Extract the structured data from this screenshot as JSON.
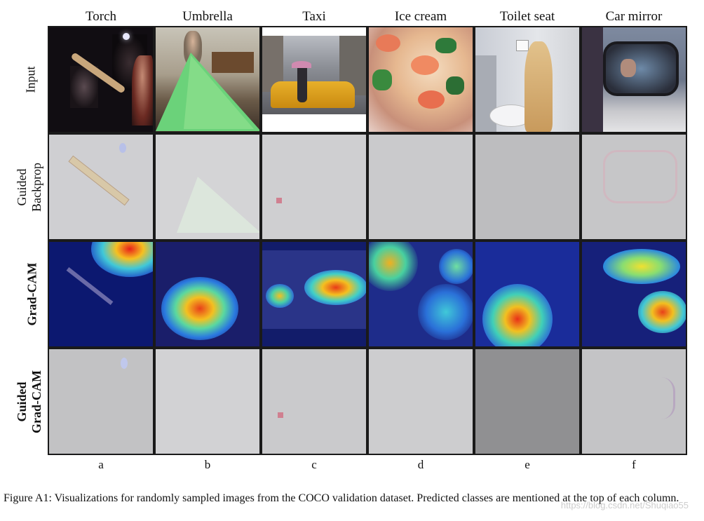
{
  "columns": [
    {
      "label": "Torch",
      "letter": "a"
    },
    {
      "label": "Umbrella",
      "letter": "b"
    },
    {
      "label": "Taxi",
      "letter": "c"
    },
    {
      "label": "Ice cream",
      "letter": "d"
    },
    {
      "label": "Toilet seat",
      "letter": "e"
    },
    {
      "label": "Car mirror",
      "letter": "f"
    }
  ],
  "rows": [
    {
      "label": "Input",
      "bold": false
    },
    {
      "label": "Guided\nBackprop",
      "bold": false
    },
    {
      "label": "Grad-CAM",
      "bold": true
    },
    {
      "label": "Guided\nGrad-CAM",
      "bold": true
    }
  ],
  "caption": "Figure A1: Visualizations for randomly sampled images from the COCO validation dataset. Predicted classes are mentioned at the top of each column.",
  "watermark": "https://blog.csdn.net/Shuqiao55"
}
